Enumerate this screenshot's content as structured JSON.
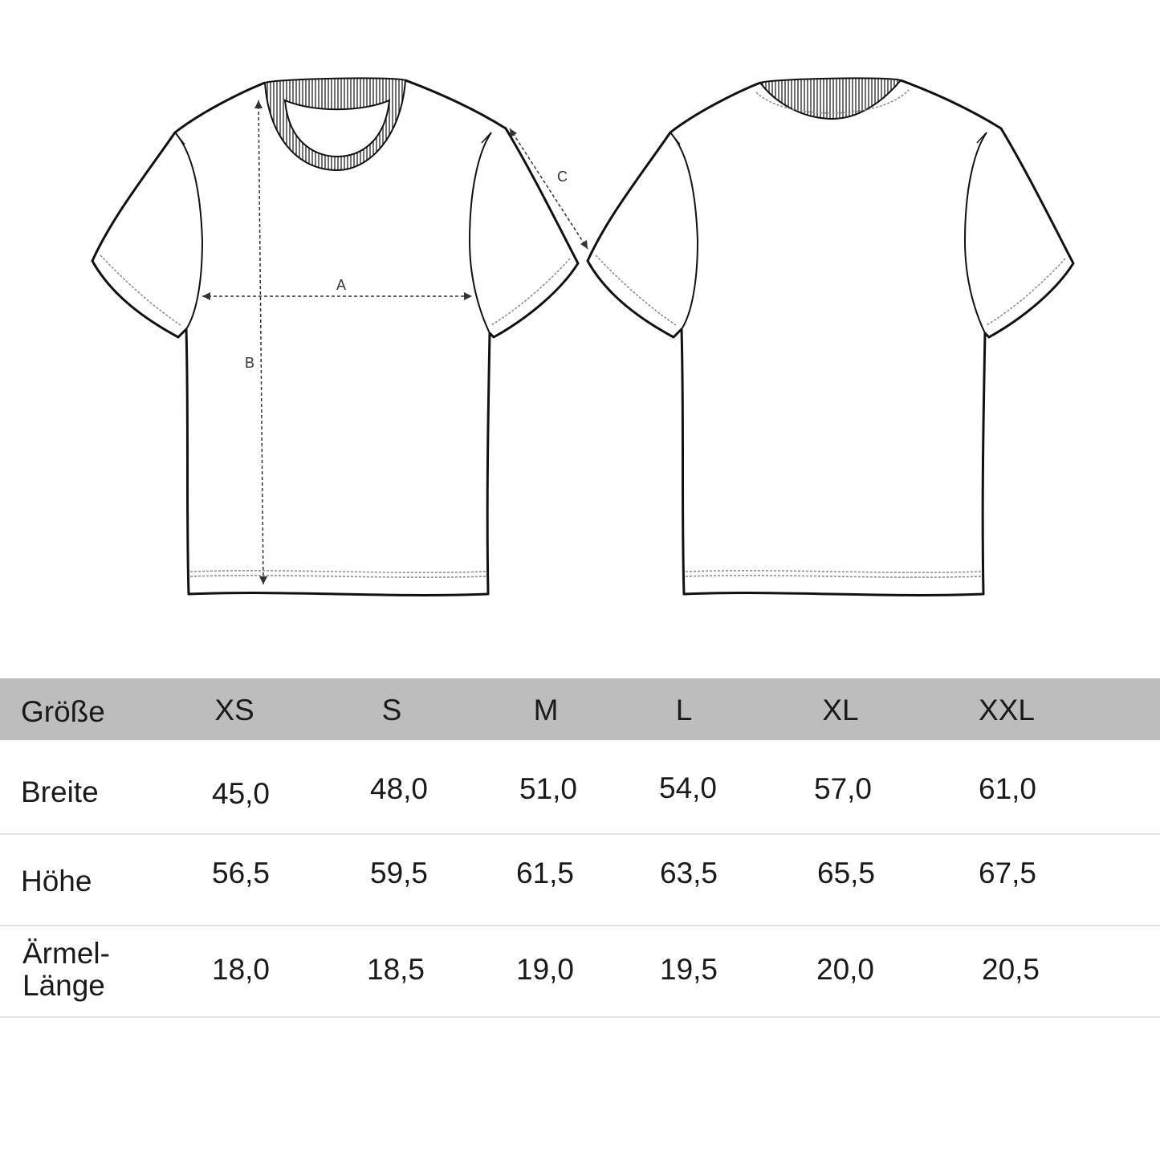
{
  "diagram": {
    "views": [
      "front",
      "back"
    ],
    "measure_labels": {
      "width": "A",
      "length": "B",
      "sleeve": "C"
    }
  },
  "table": {
    "header_label": "Größe",
    "sizes": [
      "XS",
      "S",
      "M",
      "L",
      "XL",
      "XXL"
    ],
    "rows": [
      {
        "label": "Breite",
        "values": [
          "45,0",
          "48,0",
          "51,0",
          "54,0",
          "57,0",
          "61,0"
        ]
      },
      {
        "label": "Höhe",
        "values": [
          "56,5",
          "59,5",
          "61,5",
          "63,5",
          "65,5",
          "67,5"
        ]
      },
      {
        "label_line1": "Ärmel-",
        "label_line2": "Länge",
        "values": [
          "18,0",
          "18,5",
          "19,0",
          "19,5",
          "20,0",
          "20,5"
        ]
      }
    ],
    "header_color": "#bdbdbd"
  }
}
